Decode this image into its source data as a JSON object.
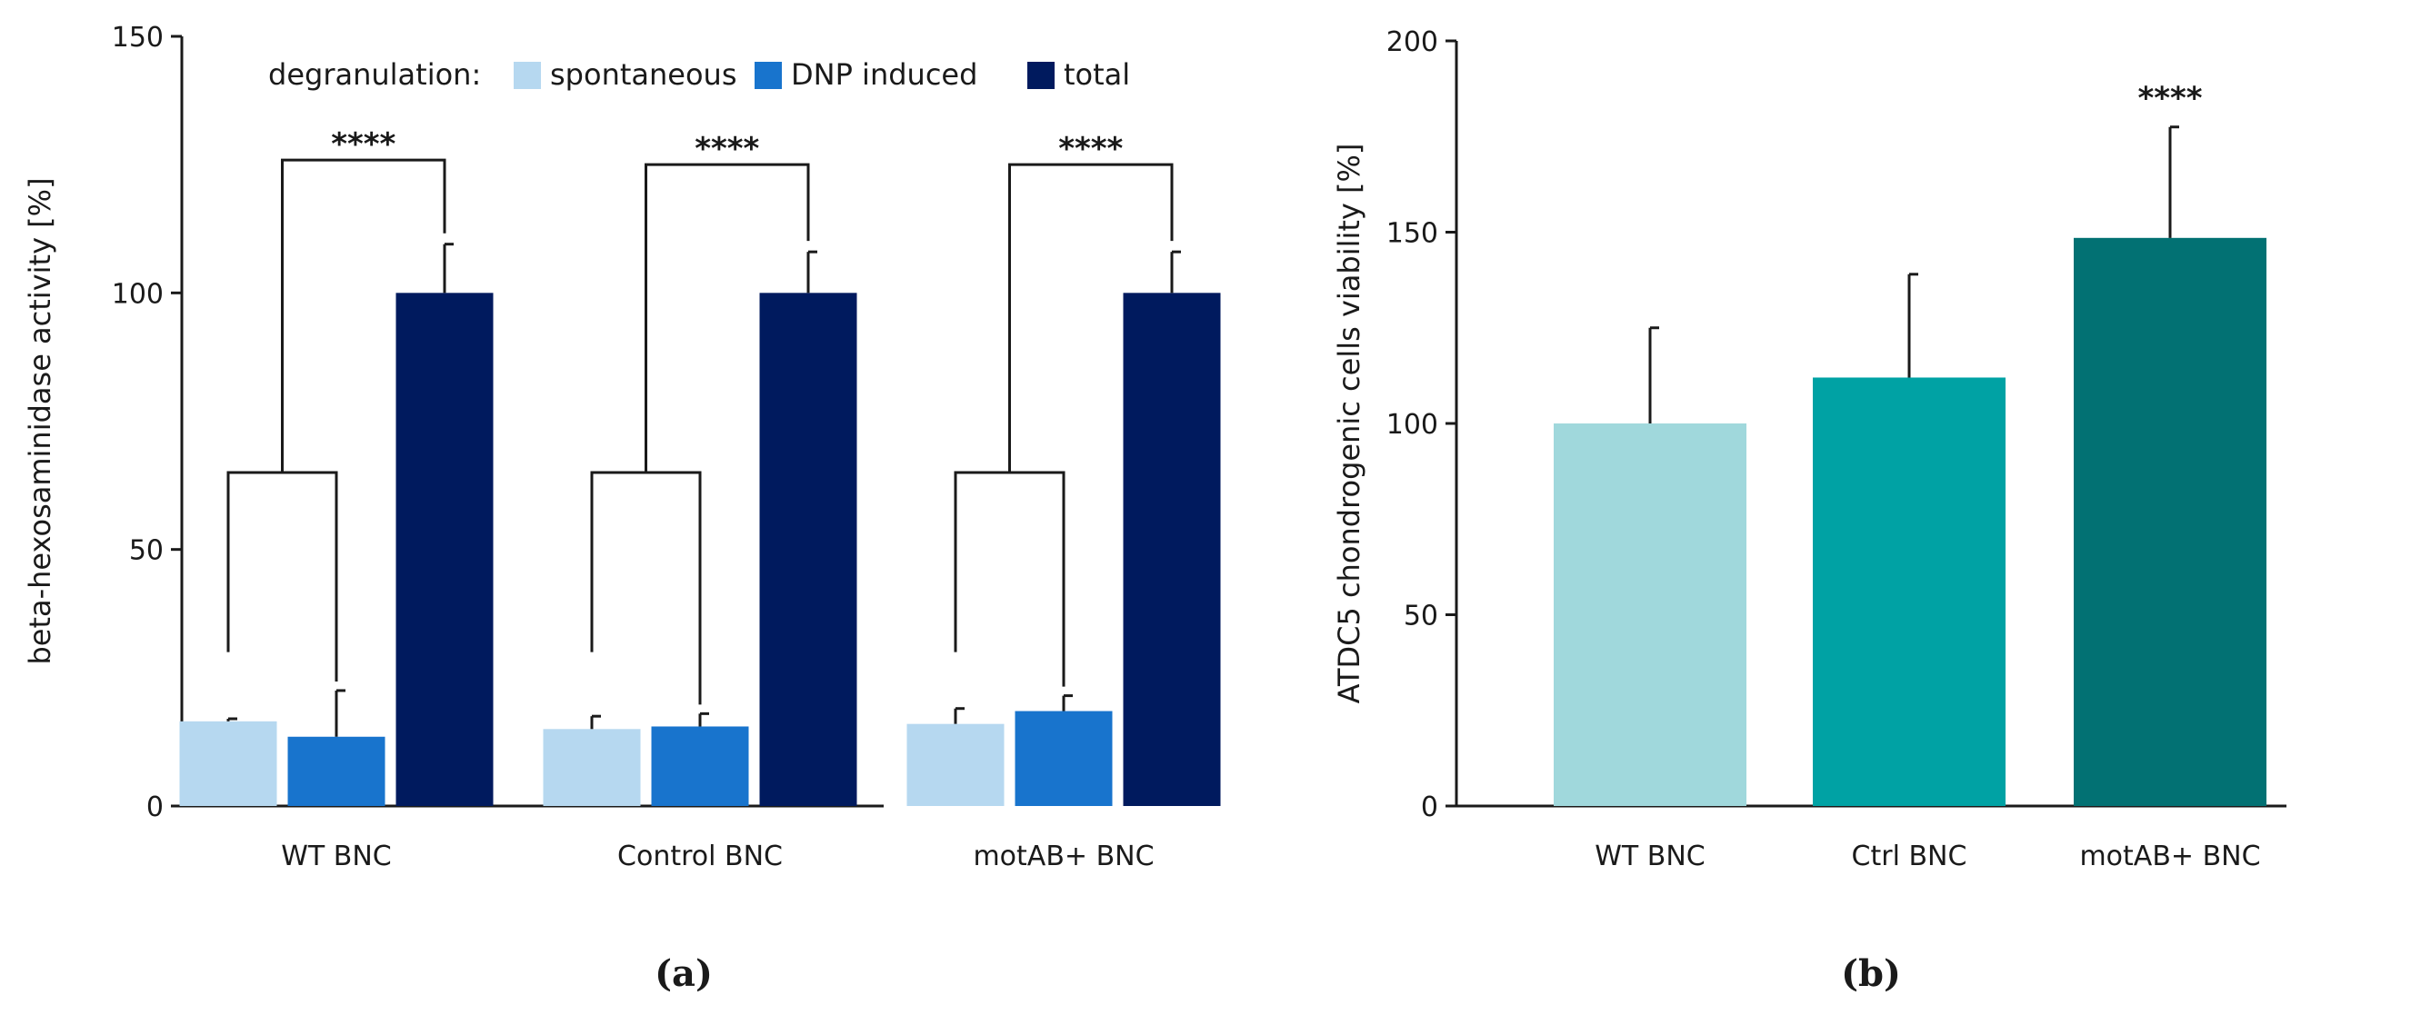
{
  "chart_data": [
    {
      "type": "bar",
      "panel_label": "(a)",
      "ylabel": "beta-hexosaminidase activity [%]",
      "ylim": [
        0,
        150
      ],
      "yticks": [
        0,
        50,
        100,
        150
      ],
      "categories": [
        "WT BNC",
        "Control BNC",
        "motAB+ BNC"
      ],
      "legend_title": "degranulation:",
      "series": [
        {
          "name": "spontaneous",
          "color": "#b6d8f0",
          "values": [
            16.5,
            15.0,
            16.0
          ],
          "errors": [
            0.5,
            2.5,
            3.0
          ]
        },
        {
          "name": "DNP induced",
          "color": "#1874cd",
          "values": [
            13.5,
            15.5,
            18.5
          ],
          "errors": [
            9.0,
            2.5,
            3.0
          ]
        },
        {
          "name": "total",
          "color": "#001a5e",
          "values": [
            100,
            100,
            100
          ],
          "errors": [
            9.5,
            8.0,
            8.0
          ]
        }
      ],
      "significance": [
        "****",
        "****",
        "****"
      ]
    },
    {
      "type": "bar",
      "panel_label": "(b)",
      "ylabel": "ATDC5 chondrogenic cells viability [%]",
      "ylim": [
        0,
        200
      ],
      "yticks": [
        0,
        50,
        100,
        150,
        200
      ],
      "categories": [
        "WT BNC",
        "Ctrl BNC",
        "motAB+ BNC"
      ],
      "values": [
        100,
        112,
        148.5
      ],
      "errors": [
        25,
        27,
        29
      ],
      "colors": [
        "#a0d8dc",
        "#00a2a4",
        "#027173"
      ],
      "significance": [
        "",
        "",
        "****"
      ]
    }
  ]
}
